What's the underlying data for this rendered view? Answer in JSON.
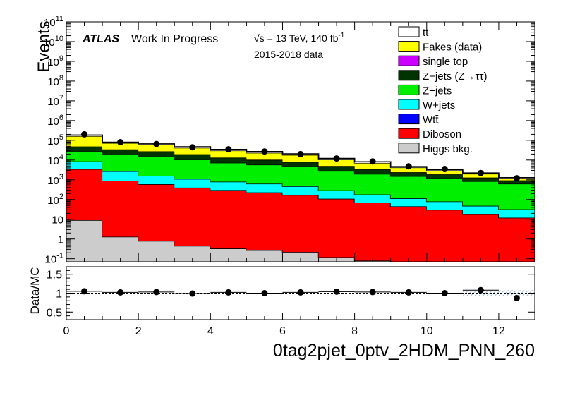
{
  "header": {
    "atlas": "ATLAS",
    "status": "Work In Progress",
    "energy": "√s = 13 TeV, 140 fb",
    "energy_sup": "-1",
    "dataset": "2015-2018 data"
  },
  "footer": {
    "region": "0tag2pjet_0ptv_2HDM_PNN_260"
  },
  "chart_data": [
    {
      "type": "area",
      "stacked": true,
      "ylabel": "Events",
      "yscale": "log",
      "ylim": [
        0.07,
        100000000000.0
      ],
      "xlim": [
        0,
        13
      ],
      "bin_edges": [
        0,
        1,
        2,
        3,
        4,
        5,
        6,
        7,
        8,
        9,
        10,
        11,
        12,
        13
      ],
      "y_tick_labels": [
        "10^-1",
        "1",
        "10",
        "10^2",
        "10^3",
        "10^4",
        "10^5",
        "10^6",
        "10^7",
        "10^8",
        "10^9",
        "10^10",
        "10^11"
      ],
      "legend_placement": "top-right",
      "series": [
        {
          "name": "Higgs bkg.",
          "color": "#cccccc",
          "values": [
            9,
            1.3,
            0.8,
            0.45,
            0.33,
            0.27,
            0.22,
            0.12,
            0.08,
            0.05,
            0.04,
            0.03,
            0.02
          ]
        },
        {
          "name": "Diboson",
          "color": "#ff0000",
          "values": [
            3500,
            900,
            600,
            400,
            300,
            230,
            170,
            110,
            70,
            45,
            30,
            18,
            12
          ]
        },
        {
          "name": "Wtt̄",
          "color": "#0000ff",
          "values": [
            0,
            0,
            0,
            0,
            0,
            0,
            0,
            0,
            0,
            0,
            0,
            0,
            0
          ]
        },
        {
          "name": "W+jets",
          "color": "#00ffff",
          "values": [
            5000,
            1800,
            1000,
            700,
            500,
            400,
            300,
            180,
            110,
            70,
            50,
            30,
            20
          ]
        },
        {
          "name": "Z+jets",
          "color": "#00ee00",
          "values": [
            20000,
            16000,
            13000,
            9500,
            6500,
            5200,
            4300,
            2500,
            1800,
            1400,
            1100,
            800,
            600
          ]
        },
        {
          "name": "Z+jets (Z→ττ)",
          "color": "#003300",
          "values": [
            20000,
            16000,
            13000,
            9000,
            6000,
            4500,
            3300,
            2200,
            1500,
            900,
            700,
            450,
            300
          ]
        },
        {
          "name": "single top",
          "color": "#cc00ff",
          "values": [
            0,
            0,
            0,
            0,
            0,
            0,
            0,
            0,
            0,
            0,
            0,
            0,
            0
          ]
        },
        {
          "name": "Fakes (data)",
          "color": "#ffff00",
          "values": [
            115000,
            38000,
            32000,
            22000,
            17000,
            13000,
            10000,
            5500,
            3700,
            1800,
            1100,
            700,
            250
          ]
        },
        {
          "name": "tt̄",
          "color": "#ffffff",
          "values": [
            20000,
            7000,
            6000,
            5000,
            4000,
            3500,
            2500,
            1500,
            1000,
            400,
            300,
            200,
            100
          ]
        }
      ],
      "data_points": {
        "x": [
          0.5,
          1.5,
          2.5,
          3.5,
          4.5,
          5.5,
          6.5,
          7.5,
          8.5,
          9.5,
          10.5,
          11.5,
          12.5
        ],
        "y": [
          200000,
          80000,
          65000,
          44000,
          35000,
          27000,
          20000,
          12000,
          8500,
          4800,
          3500,
          2200,
          1200
        ]
      }
    },
    {
      "type": "scatter",
      "ylabel": "Data/MC",
      "ylim": [
        0.3,
        1.7
      ],
      "y_tick_labels": [
        "0.5",
        "1",
        "1.5"
      ],
      "xlim": [
        0,
        13
      ],
      "x_tick_labels": [
        "0",
        "2",
        "4",
        "6",
        "8",
        "10",
        "12"
      ],
      "x": [
        0.5,
        1.5,
        2.5,
        3.5,
        4.5,
        5.5,
        6.5,
        7.5,
        8.5,
        9.5,
        10.5,
        11.5,
        12.5
      ],
      "y": [
        1.05,
        1.02,
        1.03,
        0.99,
        1.02,
        1.0,
        1.02,
        1.04,
        1.03,
        1.02,
        1.0,
        1.08,
        0.87
      ]
    }
  ]
}
